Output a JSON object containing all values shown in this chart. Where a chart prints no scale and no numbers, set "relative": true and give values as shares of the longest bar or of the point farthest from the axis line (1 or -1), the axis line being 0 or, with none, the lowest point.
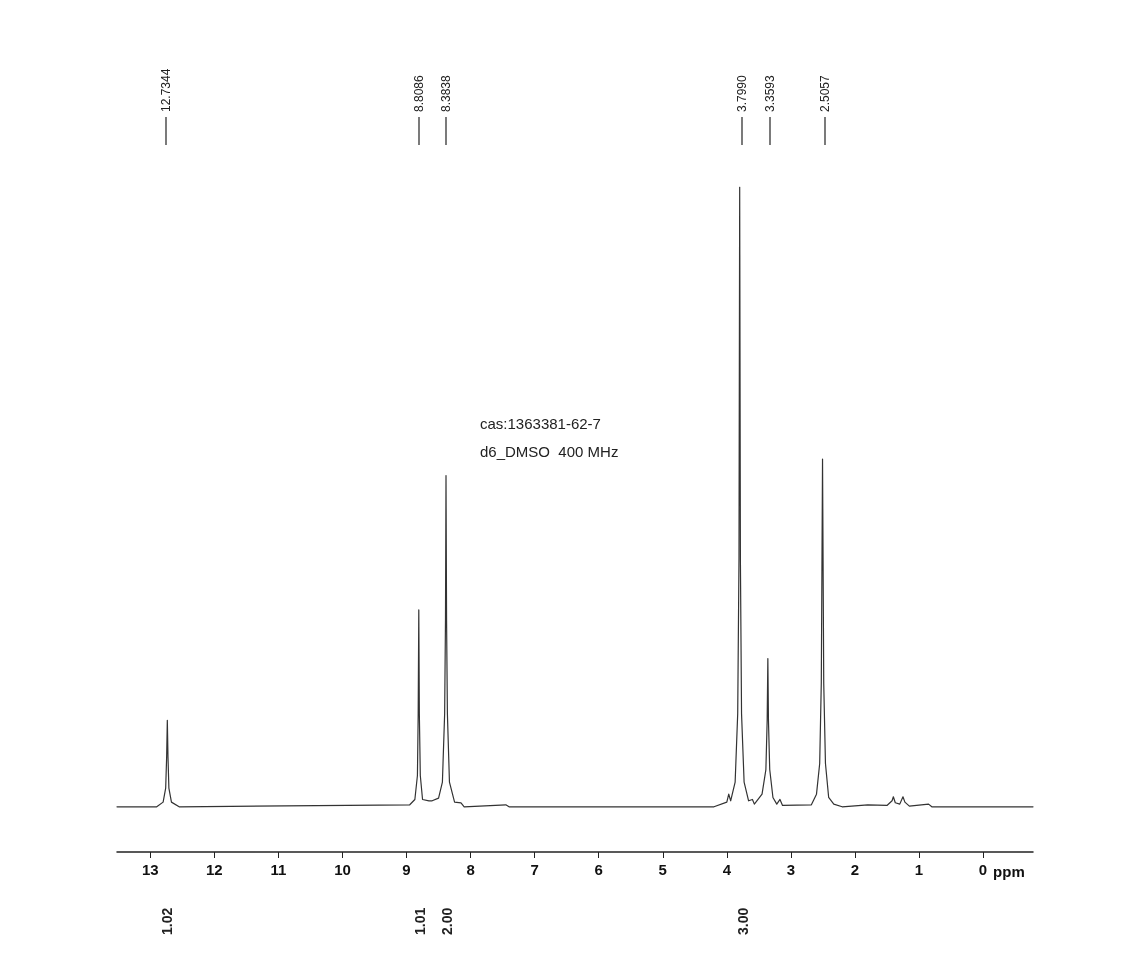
{
  "chart_data": {
    "type": "line",
    "relative": true,
    "xlabel": "ppm",
    "xlim": [
      13.52,
      -0.78
    ],
    "xticks": [
      13,
      12,
      11,
      10,
      9,
      8,
      7,
      6,
      5,
      4,
      3,
      2,
      1,
      0
    ],
    "grid": false,
    "marker": "none",
    "line_style": "solid",
    "series": [
      {
        "color": "#333333",
        "x": [
          13.52,
          12.9,
          12.8,
          12.76,
          12.745,
          12.7344,
          12.724,
          12.71,
          12.67,
          12.55,
          8.95,
          8.87,
          8.83,
          8.818,
          8.8086,
          8.8,
          8.785,
          8.75,
          8.65,
          8.6,
          8.5,
          8.44,
          8.405,
          8.392,
          8.3838,
          8.375,
          8.362,
          8.33,
          8.25,
          8.15,
          8.1,
          7.45,
          7.4,
          4.2,
          4.0,
          3.97,
          3.94,
          3.87,
          3.83,
          3.81,
          3.799,
          3.788,
          3.77,
          3.73,
          3.66,
          3.6,
          3.57,
          3.45,
          3.39,
          3.37,
          3.3593,
          3.35,
          3.33,
          3.28,
          3.22,
          3.17,
          3.13,
          2.68,
          2.6,
          2.55,
          2.525,
          2.5057,
          2.487,
          2.46,
          2.41,
          2.33,
          2.2,
          1.8,
          1.5,
          1.42,
          1.4,
          1.37,
          1.3,
          1.25,
          1.22,
          1.15,
          0.85,
          0.8,
          -0.78
        ],
        "values": [
          0.068,
          0.068,
          0.075,
          0.096,
          0.143,
          0.198,
          0.143,
          0.096,
          0.075,
          0.068,
          0.071,
          0.079,
          0.115,
          0.208,
          0.364,
          0.208,
          0.115,
          0.079,
          0.077,
          0.077,
          0.081,
          0.105,
          0.208,
          0.348,
          0.566,
          0.348,
          0.208,
          0.105,
          0.075,
          0.074,
          0.068,
          0.071,
          0.068,
          0.068,
          0.075,
          0.087,
          0.077,
          0.105,
          0.208,
          0.441,
          1,
          0.441,
          0.208,
          0.105,
          0.077,
          0.079,
          0.072,
          0.087,
          0.124,
          0.198,
          0.291,
          0.198,
          0.124,
          0.082,
          0.072,
          0.079,
          0.07,
          0.071,
          0.087,
          0.133,
          0.254,
          0.591,
          0.254,
          0.133,
          0.082,
          0.072,
          0.068,
          0.071,
          0.07,
          0.077,
          0.083,
          0.074,
          0.072,
          0.083,
          0.075,
          0.069,
          0.072,
          0.068,
          0.068
        ]
      }
    ],
    "annotations": [
      "12.7344",
      "8.8086",
      "8.3838",
      "3.7990",
      "3.3593",
      "2.5057",
      "1.02",
      "1.01",
      "2.00",
      "3.00",
      "cas:1363381-62-7",
      "d6_DMSO  400 MHz"
    ]
  }
}
